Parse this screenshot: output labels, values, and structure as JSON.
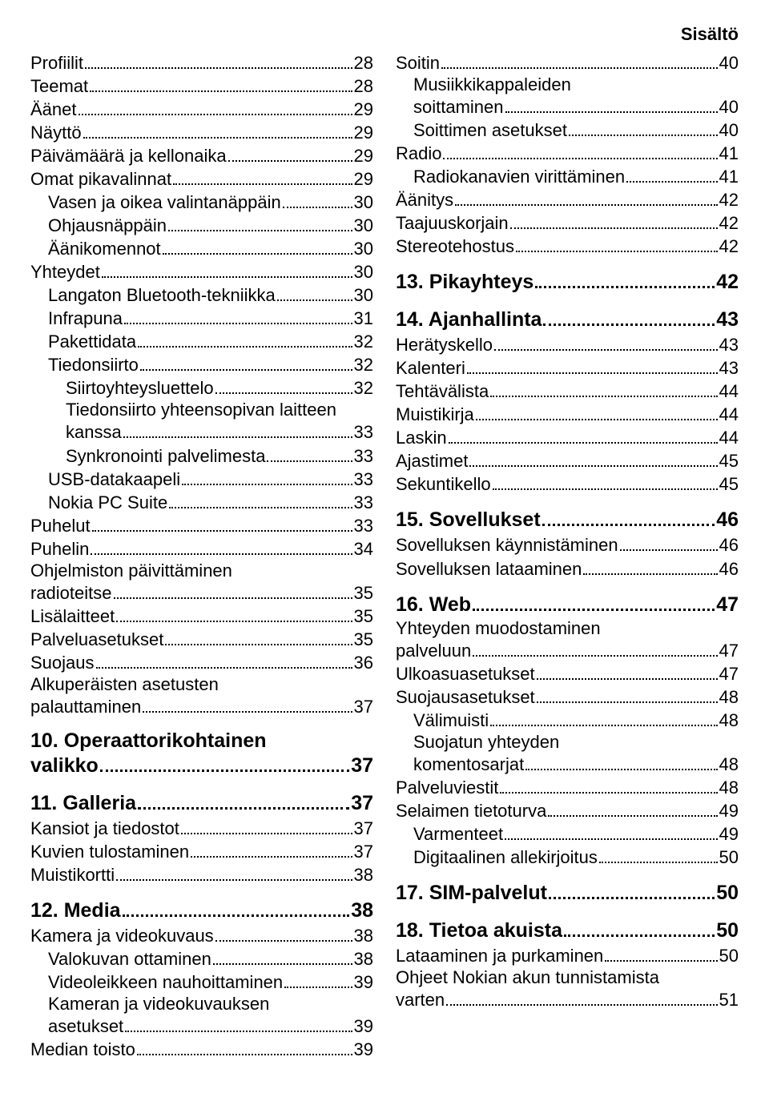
{
  "header": "Sisältö",
  "left": [
    {
      "label": "Profiilit",
      "page": "28",
      "level": 0
    },
    {
      "label": "Teemat",
      "page": "28",
      "level": 0
    },
    {
      "label": "Äänet",
      "page": "29",
      "level": 0
    },
    {
      "label": "Näyttö",
      "page": "29",
      "level": 0
    },
    {
      "label": "Päivämäärä ja kellonaika",
      "page": "29",
      "level": 0
    },
    {
      "label": "Omat pikavalinnat",
      "page": "29",
      "level": 0
    },
    {
      "label": "Vasen ja oikea valintanäppäin",
      "page": "30",
      "level": 1
    },
    {
      "label": "Ohjausnäppäin",
      "page": "30",
      "level": 1
    },
    {
      "label": "Äänikomennot",
      "page": "30",
      "level": 1
    },
    {
      "label": "Yhteydet",
      "page": "30",
      "level": 0
    },
    {
      "label": "Langaton Bluetooth-tekniikka",
      "page": "30",
      "level": 1
    },
    {
      "label": "Infrapuna",
      "page": "31",
      "level": 1
    },
    {
      "label": "Pakettidata",
      "page": "32",
      "level": 1
    },
    {
      "label": "Tiedonsiirto",
      "page": "32",
      "level": 1
    },
    {
      "label": "Siirtoyhteysluettelo",
      "page": "32",
      "level": 2
    },
    {
      "label": "Tiedonsiirto yhteensopivan laitteen kanssa",
      "page": "33",
      "level": 2,
      "wrap": true
    },
    {
      "label": "Synkronointi palvelimesta",
      "page": "33",
      "level": 2
    },
    {
      "label": "USB-datakaapeli",
      "page": "33",
      "level": 1
    },
    {
      "label": "Nokia PC Suite",
      "page": "33",
      "level": 1
    },
    {
      "label": "Puhelut",
      "page": "33",
      "level": 0
    },
    {
      "label": "Puhelin",
      "page": "34",
      "level": 0
    },
    {
      "label": "Ohjelmiston päivittäminen radioteitse",
      "page": "35",
      "level": 0,
      "wrap": true
    },
    {
      "label": "Lisälaitteet",
      "page": "35",
      "level": 0
    },
    {
      "label": "Palveluasetukset",
      "page": "35",
      "level": 0
    },
    {
      "label": "Suojaus",
      "page": "36",
      "level": 0
    },
    {
      "label": "Alkuperäisten asetusten palauttaminen",
      "page": "37",
      "level": 0,
      "wrap": true
    },
    {
      "gap": true
    },
    {
      "label": "10. Operaattorikohtainen valikko",
      "page": "37",
      "heading": true,
      "wrap": true
    },
    {
      "gap": true
    },
    {
      "label": "11. Galleria",
      "page": "37",
      "heading": true
    },
    {
      "label": "Kansiot ja tiedostot",
      "page": "37",
      "level": 0
    },
    {
      "label": "Kuvien tulostaminen",
      "page": "37",
      "level": 0
    },
    {
      "label": "Muistikortti",
      "page": "38",
      "level": 0
    },
    {
      "gap": true
    },
    {
      "label": "12. Media",
      "page": "38",
      "heading": true
    },
    {
      "label": "Kamera ja videokuvaus",
      "page": "38",
      "level": 0
    },
    {
      "label": "Valokuvan ottaminen",
      "page": "38",
      "level": 1
    },
    {
      "label": "Videoleikkeen nauhoittaminen",
      "page": "39",
      "level": 1
    },
    {
      "label": "Kameran ja videokuvauksen asetukset",
      "page": "39",
      "level": 1,
      "wrap": true
    },
    {
      "label": "Median toisto",
      "page": "39",
      "level": 0
    }
  ],
  "right": [
    {
      "label": "Soitin",
      "page": "40",
      "level": 0
    },
    {
      "label": "Musiikkikappaleiden soittaminen",
      "page": "40",
      "level": 1,
      "wrap": true
    },
    {
      "label": "Soittimen asetukset",
      "page": "40",
      "level": 1
    },
    {
      "label": "Radio",
      "page": "41",
      "level": 0
    },
    {
      "label": "Radiokanavien virittäminen",
      "page": "41",
      "level": 1
    },
    {
      "label": "Äänitys",
      "page": "42",
      "level": 0
    },
    {
      "label": "Taajuuskorjain",
      "page": "42",
      "level": 0
    },
    {
      "label": "Stereotehostus",
      "page": "42",
      "level": 0
    },
    {
      "gap": true
    },
    {
      "label": "13. Pikayhteys",
      "page": "42",
      "heading": true
    },
    {
      "gap": true
    },
    {
      "label": "14. Ajanhallinta",
      "page": "43",
      "heading": true
    },
    {
      "label": "Herätyskello",
      "page": "43",
      "level": 0
    },
    {
      "label": "Kalenteri",
      "page": "43",
      "level": 0
    },
    {
      "label": "Tehtävälista",
      "page": "44",
      "level": 0
    },
    {
      "label": "Muistikirja",
      "page": "44",
      "level": 0
    },
    {
      "label": "Laskin",
      "page": "44",
      "level": 0
    },
    {
      "label": "Ajastimet",
      "page": "45",
      "level": 0
    },
    {
      "label": "Sekuntikello",
      "page": "45",
      "level": 0
    },
    {
      "gap": true
    },
    {
      "label": "15. Sovellukset",
      "page": "46",
      "heading": true
    },
    {
      "label": "Sovelluksen käynnistäminen",
      "page": "46",
      "level": 0
    },
    {
      "label": "Sovelluksen lataaminen",
      "page": "46",
      "level": 0
    },
    {
      "gap": true
    },
    {
      "label": "16. Web",
      "page": "47",
      "heading": true
    },
    {
      "label": "Yhteyden muodostaminen palveluun",
      "page": "47",
      "level": 0,
      "wrap": true
    },
    {
      "label": "Ulkoasuasetukset",
      "page": "47",
      "level": 0
    },
    {
      "label": "Suojausasetukset",
      "page": "48",
      "level": 0
    },
    {
      "label": "Välimuisti",
      "page": "48",
      "level": 1
    },
    {
      "label": "Suojatun yhteyden komentosarjat",
      "page": "48",
      "level": 1,
      "wrap": true
    },
    {
      "label": "Palveluviestit",
      "page": "48",
      "level": 0
    },
    {
      "label": "Selaimen tietoturva",
      "page": "49",
      "level": 0
    },
    {
      "label": "Varmenteet",
      "page": "49",
      "level": 1
    },
    {
      "label": "Digitaalinen allekirjoitus",
      "page": "50",
      "level": 1
    },
    {
      "gap": true
    },
    {
      "label": "17. SIM-palvelut",
      "page": "50",
      "heading": true
    },
    {
      "gap": true
    },
    {
      "label": "18. Tietoa akuista",
      "page": "50",
      "heading": true
    },
    {
      "label": "Lataaminen ja purkaminen",
      "page": "50",
      "level": 0
    },
    {
      "label": "Ohjeet Nokian akun tunnistamista varten",
      "page": "51",
      "level": 0,
      "wrap": true
    }
  ]
}
